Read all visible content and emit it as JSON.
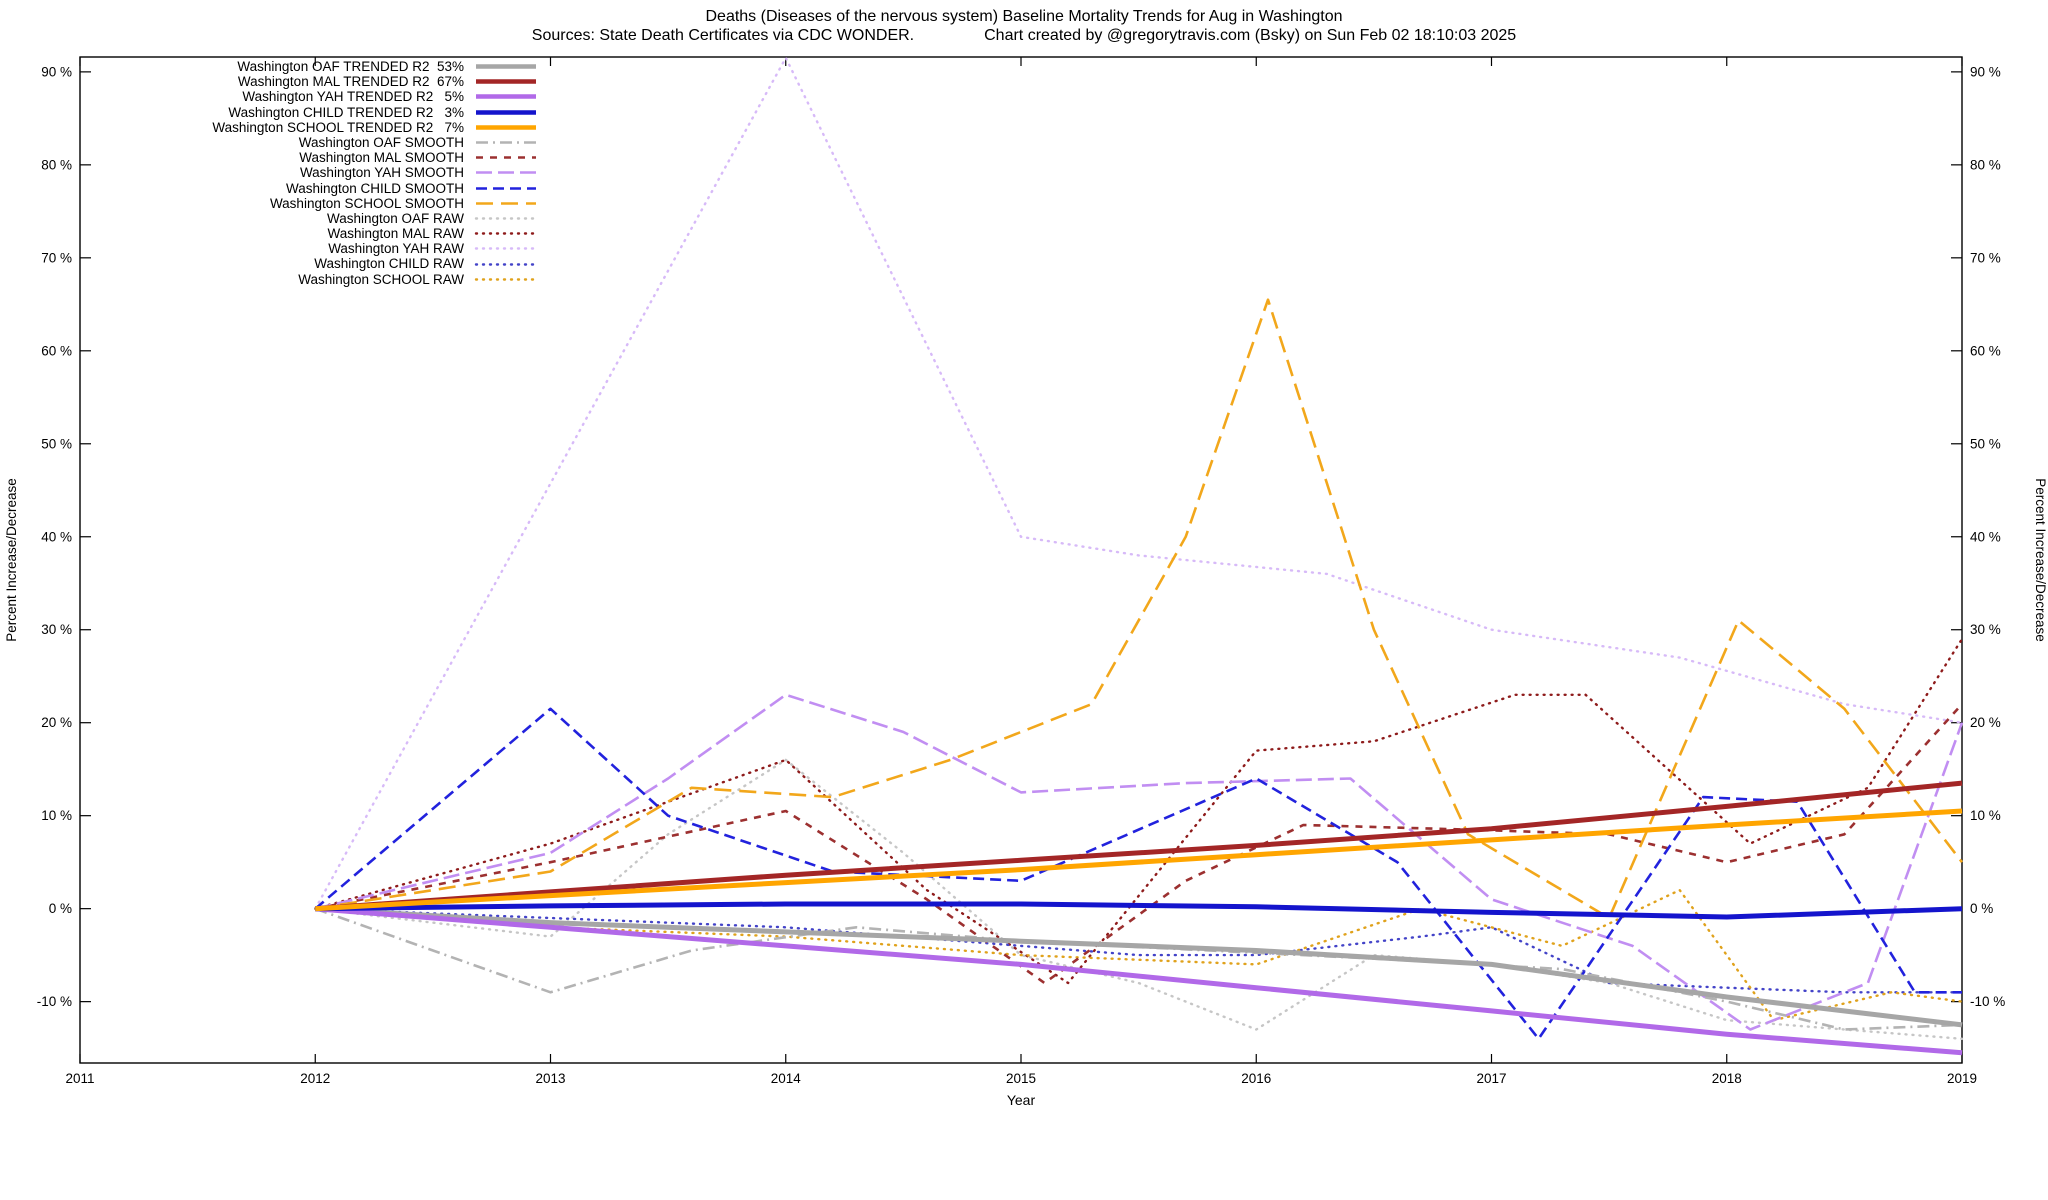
{
  "title": "Deaths (Diseases of the nervous system)  Baseline Mortality Trends for Aug in Washington",
  "subtitle_sources": "Sources: State Death Certificates via CDC WONDER.",
  "subtitle_credit": "Chart created by @gregorytravis.com (Bsky) on Sun Feb 02 18:10:03 2025",
  "chart_data": {
    "type": "line",
    "title": "Deaths (Diseases of the nervous system)  Baseline Mortality Trends for Aug in Washington",
    "xlabel": "Year",
    "ylabel_left": "Percent Increase/Decrease",
    "ylabel_right": "Percent Increase/Decrease",
    "xlim": [
      2011,
      2019
    ],
    "ylim": [
      -16.6,
      91.6
    ],
    "x_ticks": [
      2011,
      2012,
      2013,
      2014,
      2015,
      2016,
      2017,
      2018,
      2019
    ],
    "y_ticks": [
      -10,
      0,
      10,
      20,
      30,
      40,
      50,
      60,
      70,
      80,
      90
    ],
    "y_tick_suffix": " %",
    "grid": false,
    "legend_position": "top-left",
    "series": [
      {
        "name": "washington-oaf-trended",
        "label": "Washington OAF TRENDED R2  53%",
        "group": "trended",
        "color": "#a6a6a6",
        "dash": "",
        "x": [
          2012,
          2013,
          2014,
          2015,
          2016,
          2017,
          2018,
          2019
        ],
        "y": [
          0,
          -1.5,
          -2.5,
          -3.5,
          -4.5,
          -6,
          -9.5,
          -12.5
        ]
      },
      {
        "name": "washington-mal-trended",
        "label": "Washington MAL TRENDED R2  67%",
        "group": "trended",
        "color": "#a32626",
        "dash": "",
        "x": [
          2012,
          2013,
          2014,
          2015,
          2016,
          2017,
          2018,
          2019
        ],
        "y": [
          0,
          1.8,
          3.6,
          5.2,
          6.8,
          8.6,
          11,
          13.5
        ]
      },
      {
        "name": "washington-yah-trended",
        "label": "Washington YAH TRENDED R2   5%",
        "group": "trended",
        "color": "#b169e8",
        "dash": "",
        "x": [
          2012,
          2013,
          2014,
          2015,
          2016,
          2017,
          2018,
          2019
        ],
        "y": [
          0,
          -2,
          -4,
          -6,
          -8.5,
          -11,
          -13.5,
          -15.5
        ]
      },
      {
        "name": "washington-child-trended",
        "label": "Washington CHILD TRENDED R2   3%",
        "group": "trended",
        "color": "#1414cc",
        "dash": "",
        "x": [
          2012,
          2013,
          2014,
          2015,
          2016,
          2017,
          2018,
          2019
        ],
        "y": [
          0,
          0.3,
          0.5,
          0.5,
          0.2,
          -0.4,
          -0.9,
          0
        ]
      },
      {
        "name": "washington-school-trended",
        "label": "Washington SCHOOL TRENDED R2   7%",
        "group": "trended",
        "color": "#ffa500",
        "dash": "",
        "x": [
          2012,
          2013,
          2014,
          2015,
          2016,
          2017,
          2018,
          2019
        ],
        "y": [
          0,
          1.4,
          2.8,
          4.2,
          5.8,
          7.4,
          9,
          10.5
        ]
      },
      {
        "name": "washington-oaf-smooth",
        "label": "Washington OAF SMOOTH",
        "group": "smooth",
        "color": "#b3b3b3",
        "dash": "12,5,2,5",
        "x": [
          2012,
          2013,
          2013.6,
          2014.3,
          2015,
          2015.8,
          2016.6,
          2017.3,
          2018,
          2018.5,
          2019
        ],
        "y": [
          0,
          -9,
          -4.5,
          -2,
          -3.5,
          -4.5,
          -5.5,
          -6.5,
          -10,
          -13,
          -12.5
        ]
      },
      {
        "name": "washington-mal-smooth",
        "label": "Washington MAL SMOOTH",
        "group": "smooth",
        "color": "#9c3030",
        "dash": "7,7",
        "x": [
          2012,
          2013,
          2014,
          2014.6,
          2015.1,
          2015.7,
          2016.2,
          2016.9,
          2017.5,
          2018,
          2018.5,
          2019
        ],
        "y": [
          0,
          5,
          10.5,
          1,
          -8,
          3,
          9,
          8.5,
          8,
          5,
          8,
          22
        ]
      },
      {
        "name": "washington-yah-smooth",
        "label": "Washington YAH SMOOTH",
        "group": "smooth",
        "color": "#c18ef2",
        "dash": "16,6",
        "x": [
          2012,
          2013,
          2013.5,
          2014,
          2014.5,
          2015,
          2015.7,
          2016.4,
          2017,
          2017.6,
          2018.1,
          2018.6,
          2019
        ],
        "y": [
          0,
          6,
          14,
          23,
          19,
          12.5,
          13.5,
          14,
          1,
          -4,
          -13,
          -8,
          20
        ]
      },
      {
        "name": "washington-child-smooth",
        "label": "Washington CHILD SMOOTH",
        "group": "smooth",
        "color": "#2222dd",
        "dash": "11,6",
        "x": [
          2012,
          2013,
          2013.5,
          2014.2,
          2015,
          2016,
          2016.6,
          2017.2,
          2017.9,
          2018.3,
          2018.8,
          2019
        ],
        "y": [
          0,
          21.5,
          10,
          4,
          3,
          14,
          5,
          -14,
          12,
          11.5,
          -9,
          -9
        ]
      },
      {
        "name": "washington-school-smooth",
        "label": "Washington SCHOOL SMOOTH",
        "group": "smooth",
        "color": "#f2a71b",
        "dash": "17,8",
        "x": [
          2012,
          2013,
          2013.6,
          2014.2,
          2014.7,
          2015.3,
          2015.7,
          2016.05,
          2016.5,
          2016.9,
          2017.5,
          2018.05,
          2018.5,
          2019
        ],
        "y": [
          0,
          4,
          13,
          12,
          16,
          22,
          40,
          65.5,
          30,
          8,
          -1,
          31,
          21.5,
          5
        ]
      },
      {
        "name": "washington-oaf-raw",
        "label": "Washington OAF RAW",
        "group": "raw",
        "color": "#c6c6c6",
        "dash": "1,6",
        "x": [
          2012,
          2013,
          2013.5,
          2014,
          2014.5,
          2015,
          2015.5,
          2016,
          2016.5,
          2017,
          2017.5,
          2018,
          2018.5,
          2019
        ],
        "y": [
          0,
          -3,
          8,
          16,
          6,
          -5,
          -8,
          -13,
          -5,
          -6,
          -8,
          -12,
          -13,
          -14
        ]
      },
      {
        "name": "washington-mal-raw",
        "label": "Washington MAL RAW",
        "group": "raw",
        "color": "#8e1b1b",
        "dash": "1,6",
        "x": [
          2012,
          2013,
          2014,
          2014.6,
          2015.2,
          2016,
          2016.5,
          2017.1,
          2017.4,
          2018.1,
          2018.6,
          2019
        ],
        "y": [
          0,
          7,
          16,
          2,
          -8,
          17,
          18,
          23,
          23,
          7,
          13,
          29
        ]
      },
      {
        "name": "washington-yah-raw",
        "label": "Washington YAH RAW",
        "group": "raw",
        "color": "#d7baf8",
        "dash": "1,6",
        "x": [
          2012,
          2014,
          2015,
          2015.5,
          2016.3,
          2017,
          2017.8,
          2018.5,
          2019
        ],
        "y": [
          0,
          91.5,
          40,
          38,
          36,
          30,
          27,
          22,
          20
        ]
      },
      {
        "name": "washington-child-raw",
        "label": "Washington CHILD RAW",
        "group": "raw",
        "color": "#4343c8",
        "dash": "1,6",
        "x": [
          2012,
          2013,
          2014,
          2015,
          2015.5,
          2016,
          2016.7,
          2017,
          2017.5,
          2018,
          2018.5,
          2019
        ],
        "y": [
          0,
          -1,
          -2,
          -4,
          -5,
          -5,
          -3,
          -2,
          -8,
          -8.5,
          -9,
          -9
        ]
      },
      {
        "name": "washington-school-raw",
        "label": "Washington SCHOOL RAW",
        "group": "raw",
        "color": "#e0a21c",
        "dash": "1,6",
        "x": [
          2012,
          2013,
          2014,
          2015,
          2016,
          2016.7,
          2017,
          2017.3,
          2017.8,
          2018.2,
          2018.7,
          2019
        ],
        "y": [
          0,
          -2,
          -3,
          -5,
          -6,
          0,
          -2,
          -4,
          2,
          -12,
          -9,
          -10
        ]
      }
    ]
  }
}
